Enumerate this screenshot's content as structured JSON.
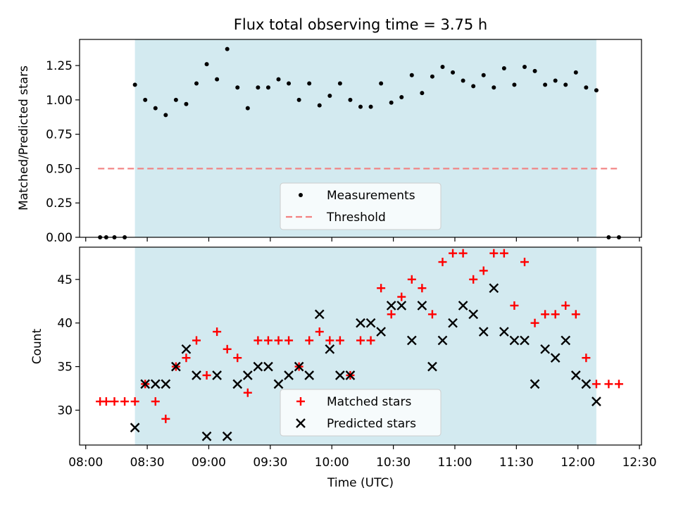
{
  "chart_data": [
    {
      "type": "scatter",
      "title": "Flux total observing time = 3.75 h",
      "xlabel": "",
      "ylabel": "Matched/Predicted stars",
      "ylim": [
        0,
        1.44
      ],
      "yticks": [
        "0.00",
        "0.25",
        "0.50",
        "0.75",
        "1.00",
        "1.25"
      ],
      "xlim": [
        "07:57",
        "12:31"
      ],
      "observing_window": {
        "start": "08:24",
        "end": "12:09",
        "color": "#d3eaf0"
      },
      "threshold": {
        "name": "Threshold",
        "value": 0.5,
        "x_start": "08:06",
        "x_end": "12:20",
        "color": "#f28080",
        "style": "dashed"
      },
      "legend": {
        "placement": "lower center",
        "entries": [
          "Measurements",
          "Threshold"
        ]
      },
      "series": [
        {
          "name": "Measurements",
          "marker": "dot",
          "color": "#000000",
          "points": [
            [
              "08:07",
              0.0
            ],
            [
              "08:10",
              0.0
            ],
            [
              "08:14",
              0.0
            ],
            [
              "08:19",
              0.0
            ],
            [
              "08:24",
              1.11
            ],
            [
              "08:29",
              1.0
            ],
            [
              "08:34",
              0.94
            ],
            [
              "08:39",
              0.89
            ],
            [
              "08:44",
              1.0
            ],
            [
              "08:49",
              0.97
            ],
            [
              "08:54",
              1.12
            ],
            [
              "08:59",
              1.26
            ],
            [
              "09:04",
              1.15
            ],
            [
              "09:09",
              1.37
            ],
            [
              "09:14",
              1.09
            ],
            [
              "09:19",
              0.94
            ],
            [
              "09:24",
              1.09
            ],
            [
              "09:29",
              1.09
            ],
            [
              "09:34",
              1.15
            ],
            [
              "09:39",
              1.12
            ],
            [
              "09:44",
              1.0
            ],
            [
              "09:49",
              1.12
            ],
            [
              "09:54",
              0.96
            ],
            [
              "09:59",
              1.03
            ],
            [
              "10:04",
              1.12
            ],
            [
              "10:09",
              1.0
            ],
            [
              "10:14",
              0.95
            ],
            [
              "10:19",
              0.95
            ],
            [
              "10:24",
              1.12
            ],
            [
              "10:29",
              0.98
            ],
            [
              "10:34",
              1.02
            ],
            [
              "10:39",
              1.18
            ],
            [
              "10:44",
              1.05
            ],
            [
              "10:49",
              1.17
            ],
            [
              "10:54",
              1.24
            ],
            [
              "10:59",
              1.2
            ],
            [
              "11:04",
              1.14
            ],
            [
              "11:09",
              1.1
            ],
            [
              "11:14",
              1.18
            ],
            [
              "11:19",
              1.09
            ],
            [
              "11:24",
              1.23
            ],
            [
              "11:29",
              1.11
            ],
            [
              "11:34",
              1.24
            ],
            [
              "11:39",
              1.21
            ],
            [
              "11:44",
              1.11
            ],
            [
              "11:49",
              1.14
            ],
            [
              "11:54",
              1.11
            ],
            [
              "11:59",
              1.2
            ],
            [
              "12:04",
              1.09
            ],
            [
              "12:09",
              1.07
            ],
            [
              "12:15",
              0.0
            ],
            [
              "12:20",
              0.0
            ]
          ]
        }
      ]
    },
    {
      "type": "scatter",
      "title": "",
      "xlabel": "Time (UTC)",
      "ylabel": "Count",
      "ylim": [
        26.0,
        48.7
      ],
      "yticks": [
        "30",
        "35",
        "40",
        "45"
      ],
      "xlim": [
        "07:57",
        "12:31"
      ],
      "xticks": [
        "08:00",
        "08:30",
        "09:00",
        "09:30",
        "10:00",
        "10:30",
        "11:00",
        "11:30",
        "12:00",
        "12:30"
      ],
      "observing_window": {
        "start": "08:24",
        "end": "12:09",
        "color": "#d3eaf0"
      },
      "legend": {
        "placement": "lower center",
        "entries": [
          "Matched stars",
          "Predicted stars"
        ]
      },
      "series": [
        {
          "name": "Matched stars",
          "marker": "plus",
          "color": "#ff0000",
          "points": [
            [
              "08:07",
              31
            ],
            [
              "08:10",
              31
            ],
            [
              "08:14",
              31
            ],
            [
              "08:19",
              31
            ],
            [
              "08:24",
              31
            ],
            [
              "08:29",
              33
            ],
            [
              "08:34",
              31
            ],
            [
              "08:39",
              29
            ],
            [
              "08:44",
              35
            ],
            [
              "08:49",
              36
            ],
            [
              "08:54",
              38
            ],
            [
              "08:59",
              34
            ],
            [
              "09:04",
              39
            ],
            [
              "09:09",
              37
            ],
            [
              "09:14",
              36
            ],
            [
              "09:19",
              32
            ],
            [
              "09:24",
              38
            ],
            [
              "09:29",
              38
            ],
            [
              "09:34",
              38
            ],
            [
              "09:39",
              38
            ],
            [
              "09:44",
              35
            ],
            [
              "09:49",
              38
            ],
            [
              "09:54",
              39
            ],
            [
              "09:59",
              38
            ],
            [
              "10:04",
              38
            ],
            [
              "10:09",
              34
            ],
            [
              "10:14",
              38
            ],
            [
              "10:19",
              38
            ],
            [
              "10:24",
              44
            ],
            [
              "10:29",
              41
            ],
            [
              "10:34",
              43
            ],
            [
              "10:39",
              45
            ],
            [
              "10:44",
              44
            ],
            [
              "10:49",
              41
            ],
            [
              "10:54",
              47
            ],
            [
              "10:59",
              48
            ],
            [
              "11:04",
              48
            ],
            [
              "11:09",
              45
            ],
            [
              "11:14",
              46
            ],
            [
              "11:19",
              48
            ],
            [
              "11:24",
              48
            ],
            [
              "11:29",
              42
            ],
            [
              "11:34",
              47
            ],
            [
              "11:39",
              40
            ],
            [
              "11:44",
              41
            ],
            [
              "11:49",
              41
            ],
            [
              "11:54",
              42
            ],
            [
              "11:59",
              41
            ],
            [
              "12:04",
              36
            ],
            [
              "12:09",
              33
            ],
            [
              "12:15",
              33
            ],
            [
              "12:20",
              33
            ]
          ]
        },
        {
          "name": "Predicted stars",
          "marker": "x",
          "color": "#000000",
          "points": [
            [
              "08:24",
              28
            ],
            [
              "08:29",
              33
            ],
            [
              "08:34",
              33
            ],
            [
              "08:39",
              33
            ],
            [
              "08:44",
              35
            ],
            [
              "08:49",
              37
            ],
            [
              "08:54",
              34
            ],
            [
              "08:59",
              27
            ],
            [
              "09:04",
              34
            ],
            [
              "09:09",
              27
            ],
            [
              "09:14",
              33
            ],
            [
              "09:19",
              34
            ],
            [
              "09:24",
              35
            ],
            [
              "09:29",
              35
            ],
            [
              "09:34",
              33
            ],
            [
              "09:39",
              34
            ],
            [
              "09:44",
              35
            ],
            [
              "09:49",
              34
            ],
            [
              "09:54",
              41
            ],
            [
              "09:59",
              37
            ],
            [
              "10:04",
              34
            ],
            [
              "10:09",
              34
            ],
            [
              "10:14",
              40
            ],
            [
              "10:19",
              40
            ],
            [
              "10:24",
              39
            ],
            [
              "10:29",
              42
            ],
            [
              "10:34",
              42
            ],
            [
              "10:39",
              38
            ],
            [
              "10:44",
              42
            ],
            [
              "10:49",
              35
            ],
            [
              "10:54",
              38
            ],
            [
              "10:59",
              40
            ],
            [
              "11:04",
              42
            ],
            [
              "11:09",
              41
            ],
            [
              "11:14",
              39
            ],
            [
              "11:19",
              44
            ],
            [
              "11:24",
              39
            ],
            [
              "11:29",
              38
            ],
            [
              "11:34",
              38
            ],
            [
              "11:39",
              33
            ],
            [
              "11:44",
              37
            ],
            [
              "11:49",
              36
            ],
            [
              "11:54",
              38
            ],
            [
              "11:59",
              34
            ],
            [
              "12:04",
              33
            ],
            [
              "12:09",
              31
            ]
          ]
        }
      ]
    }
  ]
}
